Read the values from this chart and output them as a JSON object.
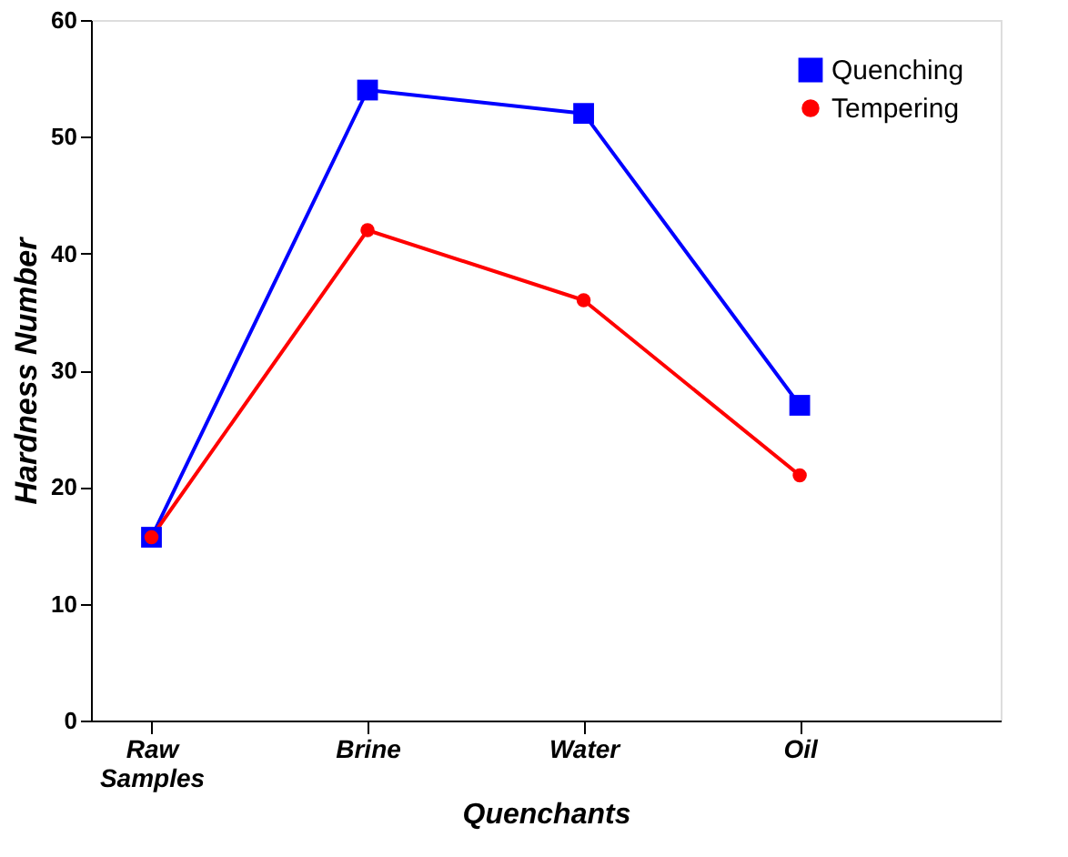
{
  "chart_data": {
    "type": "line",
    "xlabel": "Quenchants",
    "ylabel": "Hardness Number",
    "categories": [
      "Raw Samples",
      "Brine",
      "Water",
      "Oil"
    ],
    "series": [
      {
        "name": "Quenching",
        "color": "#0000ff",
        "marker": "square",
        "values": [
          15.7,
          54,
          52,
          27
        ]
      },
      {
        "name": "Tempering",
        "color": "#ff0000",
        "marker": "circle",
        "values": [
          15.7,
          42,
          36,
          21
        ]
      }
    ],
    "ylim": [
      0,
      60
    ],
    "yticks": [
      0,
      10,
      20,
      30,
      40,
      50,
      60
    ],
    "grid": false,
    "legend": "top right"
  }
}
